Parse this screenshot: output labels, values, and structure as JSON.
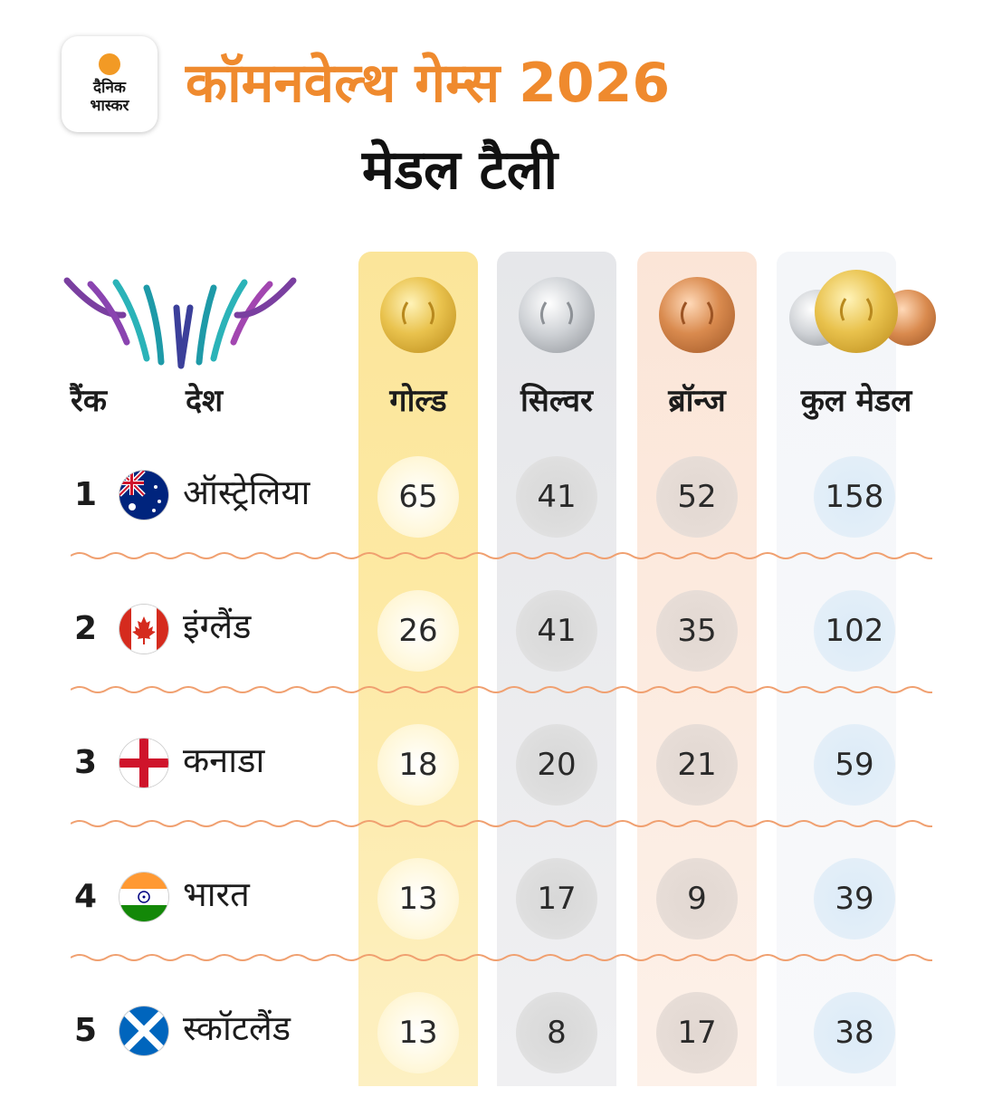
{
  "brand": {
    "line1": "दैनिक",
    "line2": "भास्कर",
    "accent_color": "#f29a25"
  },
  "header": {
    "title": "कॉमनवेल्थ गेम्स 2026",
    "subtitle": "मेडल टैली",
    "title_color": "#ef8a2e"
  },
  "columns": {
    "rank": "रैंक",
    "country": "देश",
    "gold": "गोल्ड",
    "silver": "सिल्वर",
    "bronze": "ब्रॉन्ज",
    "total": "कुल मेडल"
  },
  "rows": [
    {
      "rank": "1",
      "country": "ऑस्ट्रेलिया",
      "flag": "australia-flag",
      "gold": "65",
      "silver": "41",
      "bronze": "52",
      "total": "158"
    },
    {
      "rank": "2",
      "country": "इंग्लैंड",
      "flag": "canada-flag",
      "gold": "26",
      "silver": "41",
      "bronze": "35",
      "total": "102"
    },
    {
      "rank": "3",
      "country": "कनाडा",
      "flag": "england-flag",
      "gold": "18",
      "silver": "20",
      "bronze": "21",
      "total": "59"
    },
    {
      "rank": "4",
      "country": "भारत",
      "flag": "india-flag",
      "gold": "13",
      "silver": "17",
      "bronze": "9",
      "total": "39"
    },
    {
      "rank": "5",
      "country": "स्कॉटलैंड",
      "flag": "scotland-flag",
      "gold": "13",
      "silver": "8",
      "bronze": "17",
      "total": "38"
    }
  ],
  "colors": {
    "gold": "#fde9a3",
    "silver": "#e6e7ea",
    "bronze": "#fbe5d7",
    "total": "#f4f6f9",
    "divider": "#f0a070"
  }
}
